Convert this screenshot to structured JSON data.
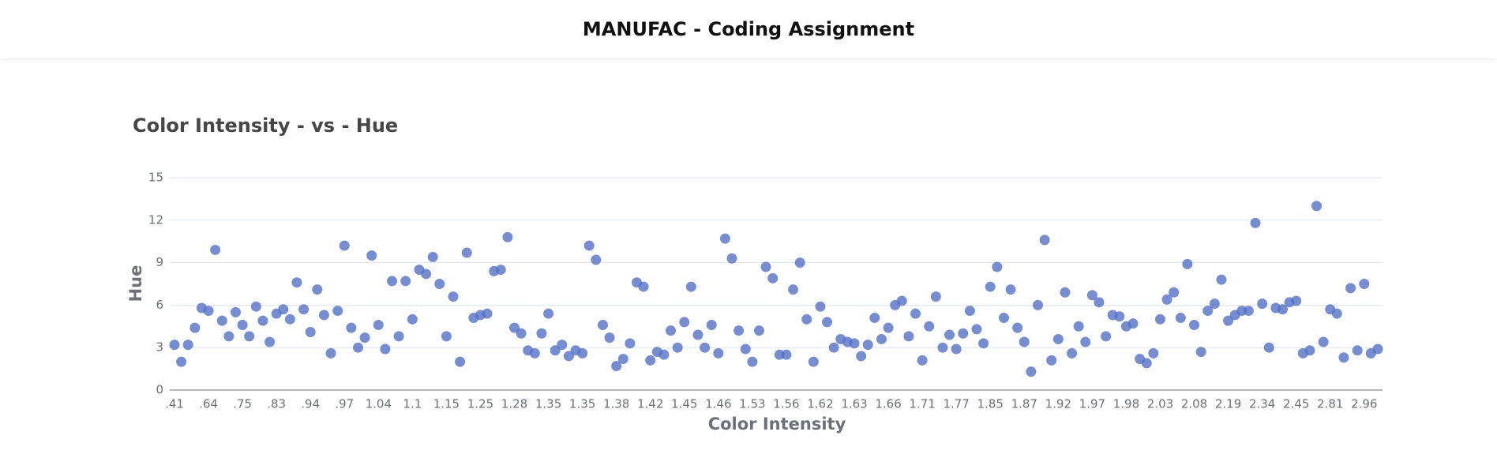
{
  "header": {
    "title": "MANUFAC - Coding Assignment"
  },
  "chart_data": {
    "type": "scatter",
    "title": "Color Intensity - vs - Hue",
    "x_label": "Color Intensity",
    "y_label": "Hue",
    "categories": [
      ".41",
      null,
      null,
      null,
      null,
      ".64",
      null,
      null,
      null,
      null,
      ".75",
      null,
      null,
      null,
      null,
      ".83",
      null,
      null,
      null,
      null,
      ".94",
      null,
      null,
      null,
      null,
      ".97",
      null,
      null,
      null,
      null,
      "1.04",
      null,
      null,
      null,
      null,
      "1.1",
      null,
      null,
      null,
      null,
      "1.15",
      null,
      null,
      null,
      null,
      "1.25",
      null,
      null,
      null,
      null,
      "1.28",
      null,
      null,
      null,
      null,
      "1.35",
      null,
      null,
      null,
      null,
      "1.35",
      null,
      null,
      null,
      null,
      "1.38",
      null,
      null,
      null,
      null,
      "1.42",
      null,
      null,
      null,
      null,
      "1.45",
      null,
      null,
      null,
      null,
      "1.46",
      null,
      null,
      null,
      null,
      "1.53",
      null,
      null,
      null,
      null,
      "1.56",
      null,
      null,
      null,
      null,
      "1.62",
      null,
      null,
      null,
      null,
      "1.63",
      null,
      null,
      null,
      null,
      "1.66",
      null,
      null,
      null,
      null,
      "1.71",
      null,
      null,
      null,
      null,
      "1.77",
      null,
      null,
      null,
      null,
      "1.85",
      null,
      null,
      null,
      null,
      "1.87",
      null,
      null,
      null,
      null,
      "1.92",
      null,
      null,
      null,
      null,
      "1.97",
      null,
      null,
      null,
      null,
      "1.98",
      null,
      null,
      null,
      null,
      "2.03",
      null,
      null,
      null,
      null,
      "2.08",
      null,
      null,
      null,
      null,
      "2.19",
      null,
      null,
      null,
      null,
      "2.34",
      null,
      null,
      null,
      null,
      "2.45",
      null,
      null,
      null,
      null,
      "2.81",
      null,
      null,
      null,
      null,
      "2.96",
      null,
      null
    ],
    "values": [
      3.2,
      2.0,
      3.2,
      4.4,
      5.8,
      5.6,
      9.9,
      4.9,
      3.8,
      5.5,
      4.6,
      3.8,
      5.9,
      4.9,
      3.4,
      5.4,
      5.7,
      5.0,
      7.6,
      5.7,
      4.1,
      7.1,
      5.3,
      2.6,
      5.6,
      10.2,
      4.4,
      3.0,
      3.7,
      9.5,
      4.6,
      2.9,
      7.7,
      3.8,
      7.7,
      5.0,
      8.5,
      8.2,
      9.4,
      7.5,
      3.8,
      6.6,
      2.0,
      9.7,
      5.1,
      5.3,
      5.4,
      8.4,
      8.5,
      10.8,
      4.4,
      4.0,
      2.8,
      2.6,
      4.0,
      5.4,
      2.8,
      3.2,
      2.4,
      2.8,
      2.6,
      10.2,
      9.2,
      4.6,
      3.7,
      1.7,
      2.2,
      3.3,
      7.6,
      7.3,
      2.1,
      2.7,
      2.5,
      4.2,
      3.0,
      4.8,
      7.3,
      3.9,
      3.0,
      4.6,
      2.6,
      10.7,
      9.3,
      4.2,
      2.9,
      2.0,
      4.2,
      8.7,
      7.9,
      2.5,
      2.5,
      7.1,
      9.0,
      5.0,
      2.0,
      5.9,
      4.8,
      3.0,
      3.6,
      3.4,
      3.3,
      2.4,
      3.2,
      5.1,
      3.6,
      4.4,
      6.0,
      6.3,
      3.8,
      5.4,
      2.1,
      4.5,
      6.6,
      3.0,
      3.9,
      2.9,
      4.0,
      5.6,
      4.3,
      3.3,
      7.3,
      8.7,
      5.1,
      7.1,
      4.4,
      3.4,
      1.3,
      6.0,
      10.6,
      2.1,
      3.6,
      6.9,
      2.6,
      4.5,
      3.4,
      6.7,
      6.2,
      3.8,
      5.3,
      5.2,
      4.5,
      4.7,
      2.2,
      1.9,
      2.6,
      5.0,
      6.4,
      6.9,
      5.1,
      8.9,
      4.6,
      2.7,
      5.6,
      6.1,
      7.8,
      4.9,
      5.3,
      5.6,
      5.6,
      11.8,
      6.1,
      3.0,
      5.8,
      5.7,
      6.2,
      6.3,
      2.6,
      2.8,
      13.0,
      3.4,
      5.7,
      5.4,
      2.3,
      7.2,
      2.8,
      7.5,
      2.6,
      2.9
    ],
    "color": "#5470c6",
    "ylim": [
      0,
      15
    ],
    "yticks": [
      0,
      3,
      6,
      9,
      12,
      15
    ],
    "grid": true
  }
}
